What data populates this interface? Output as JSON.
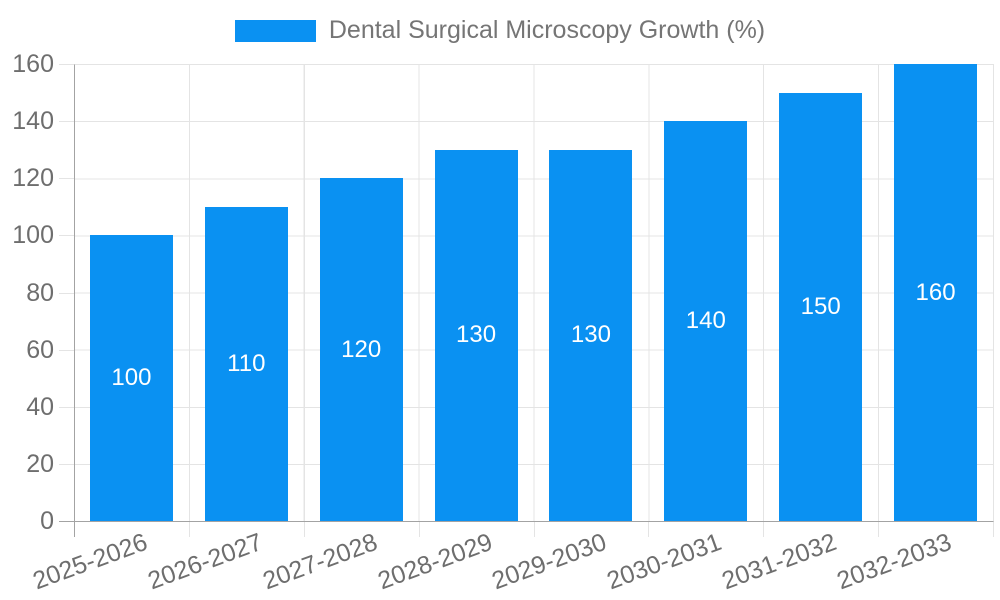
{
  "legend": {
    "label": "Dental Surgical Microscopy Growth (%)"
  },
  "colors": {
    "bar": "#0a91f2",
    "grid": "#e4e4e4",
    "axis": "#a3a3a3",
    "tick_label": "#6e6e6e",
    "legend_label": "#757575",
    "bar_label": "#ffffff",
    "background": "#ffffff"
  },
  "chart_data": {
    "type": "bar",
    "title": "Dental Surgical Microscopy Growth (%)",
    "categories": [
      "2025-2026",
      "2026-2027",
      "2027-2028",
      "2028-2029",
      "2029-2030",
      "2030-2031",
      "2031-2032",
      "2032-2033"
    ],
    "values": [
      100,
      110,
      120,
      130,
      130,
      140,
      150,
      160
    ],
    "bar_labels": [
      "100",
      "110",
      "120",
      "130",
      "130",
      "140",
      "150",
      "160"
    ],
    "yticks": [
      0,
      20,
      40,
      60,
      80,
      100,
      120,
      140,
      160
    ],
    "ylim": [
      0,
      160
    ],
    "xlabel": "",
    "ylabel": "",
    "legend_position": "top-center",
    "grid": true,
    "bar_label_position": "center",
    "x_tick_rotation_deg": -20
  }
}
